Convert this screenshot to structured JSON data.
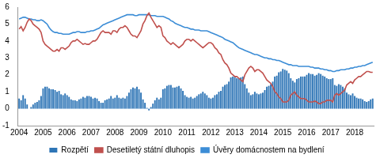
{
  "chart_data": {
    "type": "bar",
    "categories": [
      "2004",
      null,
      null,
      null,
      null,
      null,
      null,
      null,
      null,
      null,
      null,
      null,
      "2005",
      null,
      null,
      null,
      null,
      null,
      null,
      null,
      null,
      null,
      null,
      null,
      "2006",
      null,
      null,
      null,
      null,
      null,
      null,
      null,
      null,
      null,
      null,
      null,
      "2007",
      null,
      null,
      null,
      null,
      null,
      null,
      null,
      null,
      null,
      null,
      null,
      "2008",
      null,
      null,
      null,
      null,
      null,
      null,
      null,
      null,
      null,
      null,
      null,
      "2009",
      null,
      null,
      null,
      null,
      null,
      null,
      null,
      null,
      null,
      null,
      null,
      "2010",
      null,
      null,
      null,
      null,
      null,
      null,
      null,
      null,
      null,
      null,
      null,
      "2011",
      null,
      null,
      null,
      null,
      null,
      null,
      null,
      null,
      null,
      null,
      null,
      "2012",
      null,
      null,
      null,
      null,
      null,
      null,
      null,
      null,
      null,
      null,
      null,
      "2013",
      null,
      null,
      null,
      null,
      null,
      null,
      null,
      null,
      null,
      null,
      null,
      "2014",
      null,
      null,
      null,
      null,
      null,
      null,
      null,
      null,
      null,
      null,
      null,
      "2015",
      null,
      null,
      null,
      null,
      null,
      null,
      null,
      null,
      null,
      null,
      null,
      "2016",
      null,
      null,
      null,
      null,
      null,
      null,
      null,
      null,
      null,
      null,
      null,
      "2017",
      null,
      null,
      null,
      null,
      null,
      null,
      null,
      null,
      null,
      null,
      null,
      "2018",
      null,
      null,
      null,
      null,
      null,
      null,
      null,
      null,
      null
    ],
    "series": [
      {
        "name": "Rozpětí",
        "type": "bar",
        "color": "#2E75B6",
        "values": [
          0.6,
          0.5,
          0.8,
          0.6,
          0.25,
          0.0,
          0.1,
          0.25,
          0.35,
          0.4,
          0.5,
          0.75,
          1.2,
          1.3,
          1.3,
          1.2,
          1.15,
          1.15,
          1.1,
          1.0,
          1.05,
          0.85,
          0.8,
          0.9,
          0.8,
          0.7,
          0.55,
          0.5,
          0.5,
          0.45,
          0.55,
          0.6,
          0.7,
          0.65,
          0.75,
          0.75,
          0.7,
          0.6,
          0.65,
          0.6,
          0.45,
          0.35,
          0.35,
          0.5,
          0.55,
          0.6,
          0.75,
          0.6,
          0.65,
          0.8,
          0.65,
          0.6,
          0.65,
          0.6,
          0.75,
          0.95,
          1.15,
          1.25,
          1.2,
          1.3,
          1.15,
          0.95,
          0.55,
          0.35,
          0.05,
          -0.1,
          0.1,
          0.3,
          0.5,
          0.65,
          0.55,
          0.65,
          1.15,
          1.2,
          1.35,
          1.4,
          1.4,
          1.25,
          1.25,
          1.3,
          1.35,
          1.2,
          1.05,
          0.8,
          0.7,
          0.65,
          0.7,
          0.6,
          0.65,
          0.75,
          0.85,
          0.9,
          1.0,
          0.9,
          0.8,
          0.65,
          0.6,
          0.65,
          0.8,
          0.85,
          1.0,
          1.05,
          1.3,
          1.4,
          1.45,
          1.6,
          1.85,
          1.9,
          1.9,
          1.8,
          1.8,
          1.85,
          1.9,
          1.45,
          1.2,
          0.95,
          0.8,
          0.85,
          1.0,
          0.9,
          0.85,
          0.9,
          0.95,
          1.1,
          1.3,
          1.35,
          1.45,
          1.6,
          1.9,
          1.95,
          2.15,
          2.2,
          2.35,
          2.3,
          2.25,
          2.1,
          1.8,
          1.65,
          1.55,
          1.75,
          1.8,
          1.9,
          1.9,
          1.9,
          2.0,
          2.1,
          2.05,
          2.05,
          1.95,
          2.0,
          2.1,
          2.05,
          1.95,
          1.9,
          1.8,
          1.75,
          1.75,
          1.8,
          1.4,
          1.35,
          1.45,
          1.4,
          1.3,
          1.2,
          0.95,
          0.85,
          0.8,
          0.9,
          0.75,
          0.65,
          0.6,
          0.6,
          0.55,
          0.45,
          0.4,
          0.45,
          0.55,
          0.6
        ]
      },
      {
        "name": "Desetiletý státní dluhopis",
        "type": "line",
        "color": "#C0504D",
        "values": [
          4.7,
          4.85,
          4.6,
          4.8,
          5.1,
          5.3,
          5.2,
          5.0,
          4.9,
          4.8,
          4.7,
          4.5,
          4.0,
          3.8,
          3.7,
          3.6,
          3.5,
          3.4,
          3.4,
          3.5,
          3.4,
          3.6,
          3.6,
          3.5,
          3.6,
          3.7,
          3.9,
          4.0,
          4.0,
          4.1,
          4.0,
          3.9,
          3.8,
          3.85,
          3.8,
          3.8,
          3.9,
          4.0,
          4.0,
          4.1,
          4.3,
          4.5,
          4.6,
          4.5,
          4.5,
          4.5,
          4.4,
          4.6,
          4.6,
          4.5,
          4.7,
          4.8,
          4.8,
          4.9,
          4.8,
          4.6,
          4.4,
          4.3,
          4.3,
          4.2,
          4.4,
          4.6,
          5.0,
          5.2,
          5.5,
          5.65,
          5.4,
          5.2,
          5.0,
          4.8,
          4.9,
          4.8,
          4.3,
          4.2,
          4.0,
          3.9,
          3.8,
          3.9,
          3.8,
          3.7,
          3.6,
          3.7,
          3.8,
          4.0,
          4.1,
          4.1,
          4.0,
          4.1,
          4.0,
          3.9,
          3.8,
          3.7,
          3.6,
          3.7,
          3.8,
          3.9,
          3.9,
          3.8,
          3.6,
          3.5,
          3.3,
          3.2,
          2.9,
          2.7,
          2.6,
          2.4,
          2.1,
          2.0,
          1.9,
          1.9,
          1.8,
          1.7,
          1.6,
          2.0,
          2.2,
          2.4,
          2.5,
          2.4,
          2.2,
          2.3,
          2.3,
          2.2,
          2.1,
          1.9,
          1.7,
          1.6,
          1.5,
          1.3,
          1.0,
          0.9,
          0.7,
          0.6,
          0.4,
          0.4,
          0.4,
          0.5,
          0.8,
          0.9,
          1.0,
          0.8,
          0.7,
          0.6,
          0.6,
          0.6,
          0.5,
          0.4,
          0.4,
          0.4,
          0.45,
          0.4,
          0.3,
          0.3,
          0.4,
          0.4,
          0.5,
          0.5,
          0.5,
          0.4,
          0.8,
          0.9,
          0.8,
          0.9,
          1.0,
          1.1,
          1.4,
          1.5,
          1.6,
          1.5,
          1.7,
          1.8,
          1.9,
          1.9,
          2.0,
          2.1,
          2.2,
          2.2,
          2.15,
          2.15
        ]
      },
      {
        "name": "Úvěry domácnostem na bydlení",
        "type": "line",
        "color": "#3C8DD6",
        "values": [
          5.3,
          5.35,
          5.4,
          5.4,
          5.35,
          5.3,
          5.3,
          5.25,
          5.25,
          5.2,
          5.2,
          5.25,
          5.2,
          5.1,
          5.0,
          4.8,
          4.65,
          4.55,
          4.5,
          4.5,
          4.45,
          4.45,
          4.4,
          4.4,
          4.4,
          4.4,
          4.45,
          4.5,
          4.5,
          4.55,
          4.55,
          4.5,
          4.5,
          4.5,
          4.55,
          4.55,
          4.6,
          4.6,
          4.65,
          4.7,
          4.75,
          4.85,
          4.95,
          5.0,
          5.05,
          5.1,
          5.15,
          5.2,
          5.25,
          5.3,
          5.35,
          5.4,
          5.45,
          5.5,
          5.55,
          5.55,
          5.55,
          5.55,
          5.5,
          5.5,
          5.55,
          5.55,
          5.55,
          5.55,
          5.55,
          5.55,
          5.5,
          5.5,
          5.5,
          5.45,
          5.45,
          5.45,
          5.45,
          5.4,
          5.35,
          5.3,
          5.2,
          5.15,
          5.05,
          5.0,
          4.95,
          4.9,
          4.85,
          4.8,
          4.8,
          4.75,
          4.7,
          4.7,
          4.65,
          4.65,
          4.65,
          4.6,
          4.6,
          4.6,
          4.6,
          4.55,
          4.5,
          4.45,
          4.4,
          4.35,
          4.3,
          4.25,
          4.2,
          4.1,
          4.05,
          4.0,
          3.95,
          3.9,
          3.8,
          3.7,
          3.6,
          3.55,
          3.5,
          3.45,
          3.4,
          3.35,
          3.3,
          3.25,
          3.2,
          3.2,
          3.15,
          3.1,
          3.05,
          3.0,
          3.0,
          2.95,
          2.95,
          2.9,
          2.9,
          2.85,
          2.85,
          2.8,
          2.75,
          2.7,
          2.65,
          2.6,
          2.6,
          2.55,
          2.55,
          2.55,
          2.5,
          2.5,
          2.5,
          2.5,
          2.5,
          2.5,
          2.45,
          2.45,
          2.4,
          2.4,
          2.4,
          2.35,
          2.35,
          2.3,
          2.3,
          2.25,
          2.25,
          2.2,
          2.2,
          2.25,
          2.25,
          2.3,
          2.3,
          2.3,
          2.35,
          2.35,
          2.4,
          2.4,
          2.45,
          2.45,
          2.5,
          2.5,
          2.55,
          2.55,
          2.6,
          2.65,
          2.7,
          2.75
        ]
      }
    ],
    "ylim": [
      -1,
      6
    ],
    "yticks": [
      -1,
      0,
      1,
      2,
      3,
      4,
      5,
      6
    ],
    "grid": false,
    "legend": "bottom"
  }
}
